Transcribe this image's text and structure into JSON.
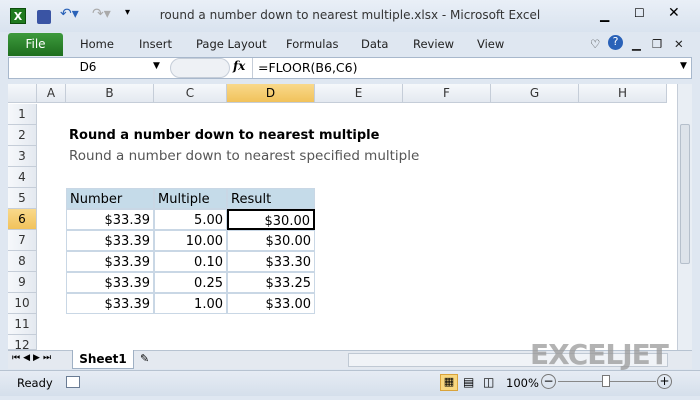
{
  "window": {
    "title": "round a number down to nearest multiple.xlsx - Microsoft Excel"
  },
  "ribbon": {
    "file": "File",
    "tabs": [
      "Home",
      "Insert",
      "Page Layout",
      "Formulas",
      "Data",
      "Review",
      "View"
    ]
  },
  "formula_bar": {
    "name_box": "D6",
    "fx": "fx",
    "formula": "=FLOOR(B6,C6)"
  },
  "columns": [
    "A",
    "B",
    "C",
    "D",
    "E",
    "F",
    "G",
    "H"
  ],
  "rows": [
    "1",
    "2",
    "3",
    "4",
    "5",
    "6",
    "7",
    "8",
    "9",
    "10",
    "11",
    "12"
  ],
  "sheet": {
    "title": "Round a number down to nearest multiple",
    "subtitle": "Round a number down to nearest specified multiple",
    "headers": [
      "Number",
      "Multiple",
      "Result"
    ],
    "data": [
      [
        "$33.39",
        "5.00",
        "$30.00"
      ],
      [
        "$33.39",
        "10.00",
        "$30.00"
      ],
      [
        "$33.39",
        "0.10",
        "$33.30"
      ],
      [
        "$33.39",
        "0.25",
        "$33.25"
      ],
      [
        "$33.39",
        "1.00",
        "$33.00"
      ]
    ]
  },
  "sheet_tabs": [
    "Sheet1"
  ],
  "status": {
    "ready": "Ready",
    "zoom": "100%"
  },
  "watermark": "EXCELJET",
  "colors": {
    "file_tab": "#2d862d",
    "header_fill": "#c5dbe9",
    "selected_header": "#f1c25b"
  }
}
